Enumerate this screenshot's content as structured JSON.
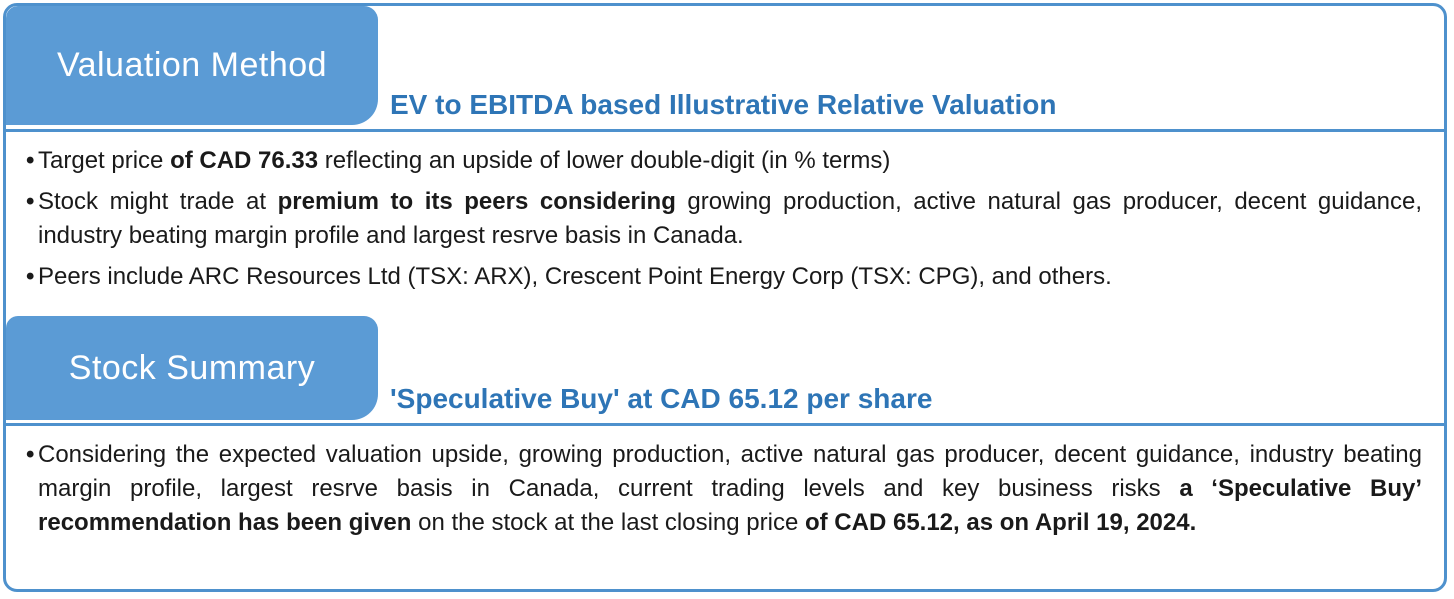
{
  "ui": {
    "bullet_glyph": "•",
    "accent_tab_color": "#5B9BD5",
    "accent_border_color": "#4E91CD",
    "subtitle_text_color": "#2E75B6"
  },
  "sections": [
    {
      "tab_label": "Valuation Method",
      "subtitle": "EV to EBITDA based Illustrative Relative Valuation",
      "bullets": [
        {
          "segments": [
            {
              "text": "Target price ",
              "bold": false
            },
            {
              "text": "of CAD 76.33",
              "bold": true
            },
            {
              "text": " reflecting an upside of lower double-digit (in % terms)",
              "bold": false
            }
          ]
        },
        {
          "segments": [
            {
              "text": "Stock might trade at ",
              "bold": false
            },
            {
              "text": "premium to its peers considering",
              "bold": true
            },
            {
              "text": " growing production, active natural gas producer, decent guidance, industry beating margin profile and largest resrve basis in Canada.",
              "bold": false
            }
          ]
        },
        {
          "segments": [
            {
              "text": "Peers include ARC Resources Ltd (TSX: ARX), Crescent Point Energy Corp (TSX: CPG), and others.",
              "bold": false
            }
          ]
        }
      ]
    },
    {
      "tab_label": "Stock Summary",
      "subtitle": "'Speculative Buy' at CAD 65.12 per share",
      "bullets": [
        {
          "segments": [
            {
              "text": "Considering the expected valuation upside, growing production, active natural gas producer, decent guidance, industry beating margin profile, largest resrve basis in Canada, current trading levels and key business risks ",
              "bold": false
            },
            {
              "text": "a ‘Speculative Buy’ recommendation has been given",
              "bold": true
            },
            {
              "text": " on the stock at the last closing price ",
              "bold": false
            },
            {
              "text": "of CAD 65.12, as on April 19, 2024.",
              "bold": true
            }
          ]
        }
      ]
    }
  ]
}
